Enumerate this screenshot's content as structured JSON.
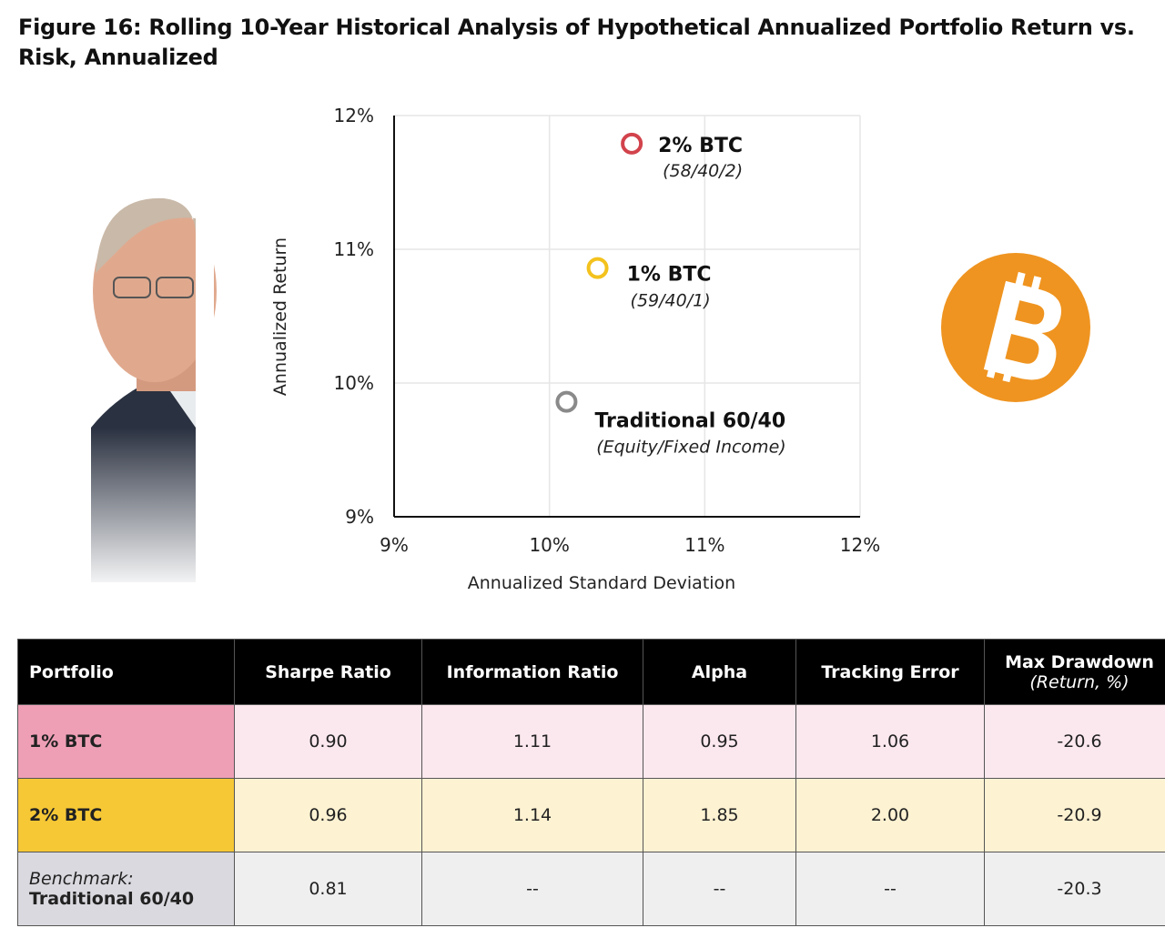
{
  "chart_data": {
    "type": "scatter",
    "title": "Figure 16: Rolling 10-Year Historical Analysis of Hypothetical Annualized Portfolio Return vs. Risk, Annualized",
    "xlabel": "Annualized Standard Deviation",
    "ylabel": "Annualized Return",
    "xlim": [
      9,
      12
    ],
    "ylim": [
      9,
      12
    ],
    "xticks": [
      {
        "value": 9,
        "label": "9%"
      },
      {
        "value": 10,
        "label": "10%"
      },
      {
        "value": 11,
        "label": "11%"
      },
      {
        "value": 12,
        "label": "12%"
      }
    ],
    "yticks": [
      {
        "value": 9,
        "label": "9%"
      },
      {
        "value": 10,
        "label": "10%"
      },
      {
        "value": 11,
        "label": "11%"
      },
      {
        "value": 12,
        "label": "12%"
      }
    ],
    "grid": true,
    "series": [
      {
        "name": "2% BTC",
        "note": "(58/40/2)",
        "color": "#d2434c",
        "x": [
          10.53
        ],
        "values": [
          11.79
        ]
      },
      {
        "name": "1% BTC",
        "note": "(59/40/1)",
        "color": "#f3c21d",
        "x": [
          10.31
        ],
        "values": [
          10.86
        ]
      },
      {
        "name": "Traditional 60/40",
        "note": "(Equity/Fixed Income)",
        "color": "#8a8a8a",
        "x": [
          10.11
        ],
        "values": [
          9.86
        ]
      }
    ]
  },
  "table": {
    "columns": [
      "Portfolio",
      "Sharpe Ratio",
      "Information Ratio",
      "Alpha",
      "Tracking Error",
      "Max Drawdown"
    ],
    "column_note": "(Return, %)",
    "rows": [
      {
        "name": "1% BTC",
        "header_color": "#ee9fb6",
        "cell_color": "#fbe8ee",
        "cells": [
          "0.90",
          "1.11",
          "0.95",
          "1.06",
          "-20.6"
        ]
      },
      {
        "name": "2% BTC",
        "header_color": "#f6c835",
        "cell_color": "#fdf2d2",
        "cells": [
          "0.96",
          "1.14",
          "1.85",
          "2.00",
          "-20.9"
        ]
      },
      {
        "prefix": "Benchmark:",
        "name": "Traditional 60/40",
        "header_color": "#d9d9df",
        "cell_color": "#efefef",
        "cells": [
          "0.81",
          "--",
          "--",
          "--",
          "-20.3"
        ]
      }
    ]
  }
}
